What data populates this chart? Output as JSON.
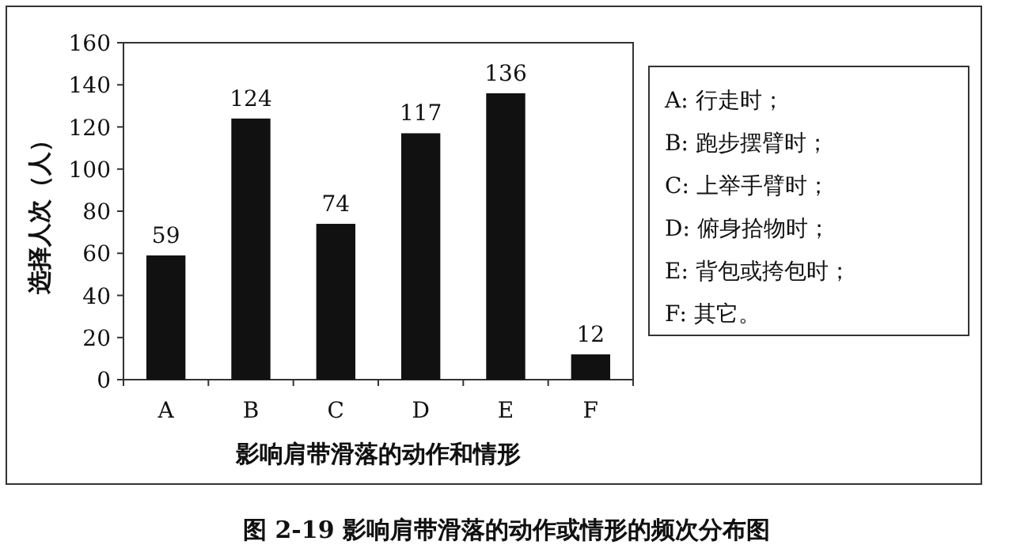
{
  "chart_data": {
    "type": "bar",
    "title": "图 2-19  影响肩带滑落的动作或情形的频次分布图",
    "xlabel": "影响肩带滑落的动作和情形",
    "ylabel": "选择人次（人）",
    "categories": [
      "A",
      "B",
      "C",
      "D",
      "E",
      "F"
    ],
    "values": [
      59,
      124,
      74,
      117,
      136,
      12
    ],
    "color": "#111111",
    "ylim": [
      0,
      160
    ],
    "yticks": [
      0,
      20,
      40,
      60,
      80,
      100,
      120,
      140,
      160
    ],
    "data_labels": true,
    "annotations": [
      "A: 行走时；",
      "B: 跑步摆臂时；",
      "C: 上举手臂时；",
      "D: 俯身拾物时；",
      "E: 背包或挎包时；",
      "F: 其它。"
    ]
  }
}
